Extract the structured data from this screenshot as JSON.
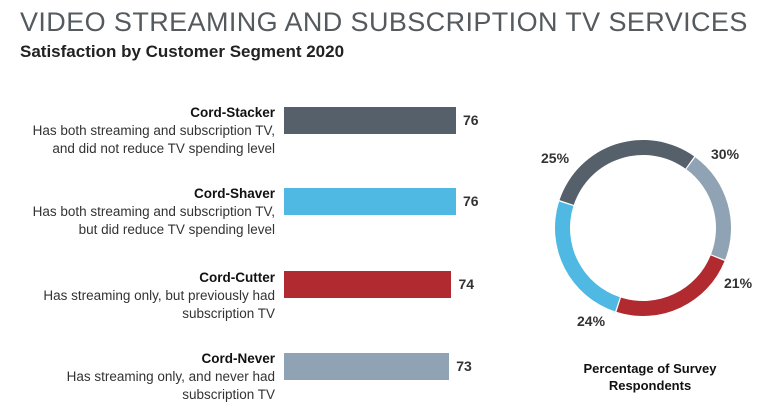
{
  "header": {
    "title": "VIDEO STREAMING AND SUBSCRIPTION TV SERVICES",
    "subtitle": "Satisfaction by Customer Segment 2020"
  },
  "chart_data": [
    {
      "type": "bar",
      "orientation": "horizontal",
      "categories": [
        "Cord-Stacker",
        "Cord-Shaver",
        "Cord-Cutter",
        "Cord-Never"
      ],
      "descriptions": [
        [
          "Has both streaming and subscription TV,",
          "and did not reduce TV spending level"
        ],
        [
          "Has both streaming and subscription TV,",
          "but did reduce TV spending level"
        ],
        [
          "Has streaming only, but previously had",
          "subscription TV"
        ],
        [
          "Has streaming only, and never had",
          "subscription TV"
        ]
      ],
      "values": [
        76,
        76,
        74,
        73
      ],
      "colors": [
        "#56606b",
        "#4fb9e3",
        "#b02a30",
        "#8fa3b4"
      ],
      "data_labels": [
        "76",
        "76",
        "74",
        "73"
      ],
      "grid": false,
      "axes_visible": false
    },
    {
      "type": "pie",
      "donut": true,
      "slices": [
        {
          "segment": "Cord-Stacker",
          "value": 30,
          "label": "30%",
          "color": "#56606b"
        },
        {
          "segment": "Cord-Never",
          "value": 21,
          "label": "21%",
          "color": "#8fa3b4"
        },
        {
          "segment": "Cord-Cutter",
          "value": 24,
          "label": "24%",
          "color": "#b02a30"
        },
        {
          "segment": "Cord-Shaver",
          "value": 25,
          "label": "25%",
          "color": "#4fb9e3"
        }
      ],
      "caption": [
        "Percentage of Survey",
        "Respondents"
      ]
    }
  ]
}
